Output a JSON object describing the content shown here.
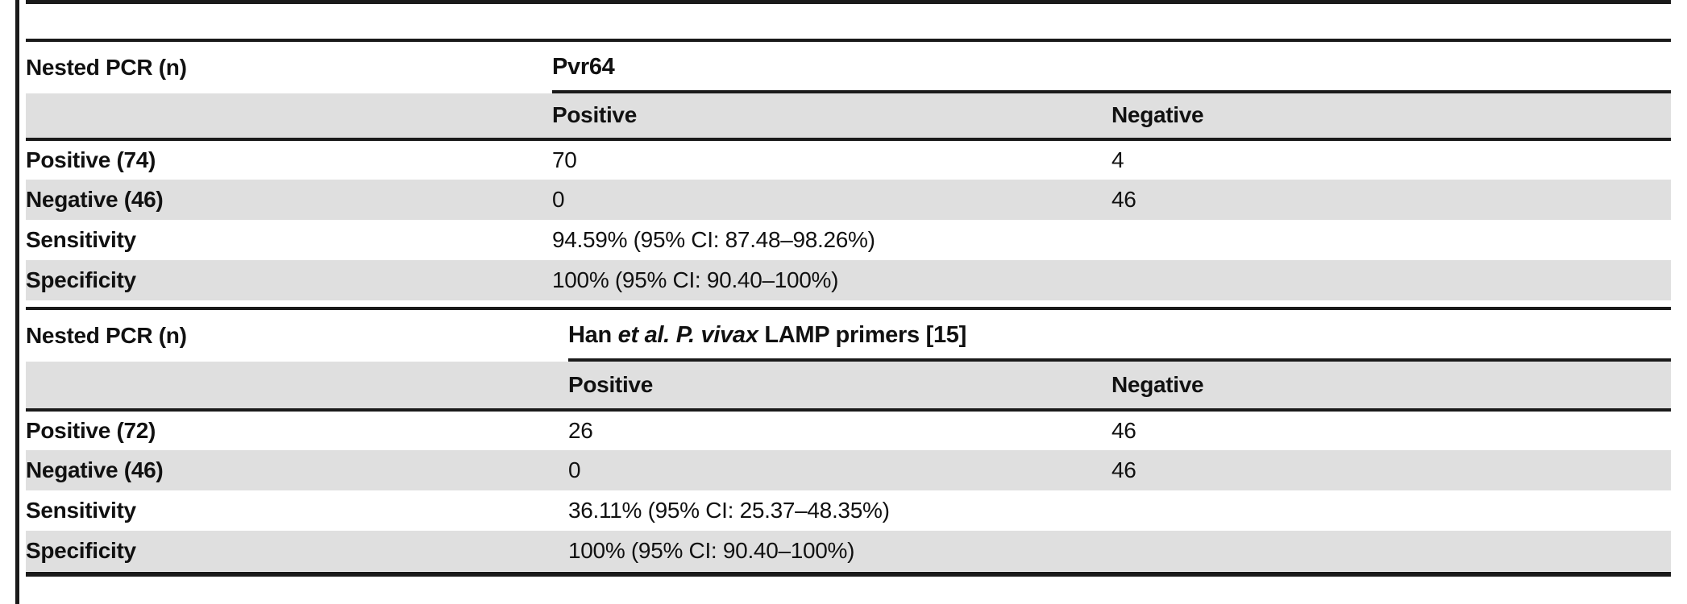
{
  "theme": {
    "rule_color": "#1a1a1a",
    "stripe_color": "#dfdfdf",
    "background": "#ffffff",
    "text_color": "#111111"
  },
  "table": {
    "sections": [
      {
        "corner_label": "Nested PCR (n)",
        "title_segments": [
          {
            "text": "Pvr64",
            "italic": false
          }
        ],
        "col_headers": [
          "Positive",
          "Negative"
        ],
        "rows": [
          {
            "label": "Positive (74)",
            "positive": "70",
            "negative": "4"
          },
          {
            "label": "Negative (46)",
            "positive": "0",
            "negative": "46"
          },
          {
            "label": "Sensitivity",
            "positive": "94.59% (95% CI: 87.48–98.26%)",
            "negative": ""
          },
          {
            "label": "Specificity",
            "positive": "100% (95% CI: 90.40–100%)",
            "negative": ""
          }
        ]
      },
      {
        "corner_label": "Nested PCR (n)",
        "title_segments": [
          {
            "text": "Han ",
            "italic": false
          },
          {
            "text": "et al. P. vivax",
            "italic": true
          },
          {
            "text": " LAMP primers [15]",
            "italic": false
          }
        ],
        "col_headers": [
          "Positive",
          "Negative"
        ],
        "rows": [
          {
            "label": "Positive (72)",
            "positive": "26",
            "negative": "46"
          },
          {
            "label": "Negative (46)",
            "positive": "0",
            "negative": "46"
          },
          {
            "label": "Sensitivity",
            "positive": "36.11% (95% CI: 25.37–48.35%)",
            "negative": ""
          },
          {
            "label": "Specificity",
            "positive": "100% (95% CI: 90.40–100%)",
            "negative": ""
          }
        ]
      }
    ]
  }
}
